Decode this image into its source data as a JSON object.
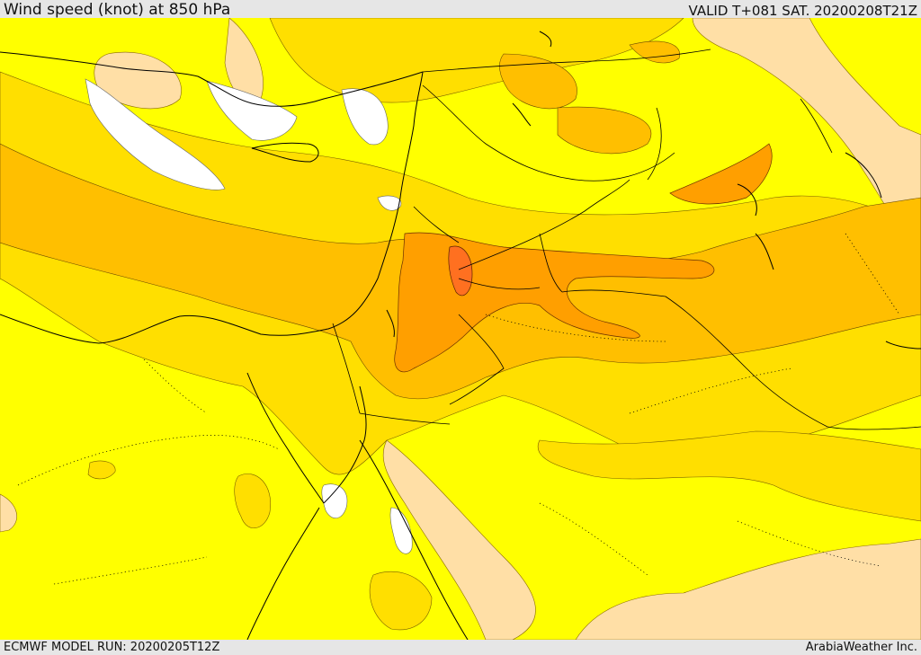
{
  "header": {
    "title": "Wind speed (knot) at 850 hPa",
    "valid": "VALID T+081 SAT. 20200208T21Z"
  },
  "footer": {
    "model_run": "ECMWF MODEL RUN: 20200205T12Z",
    "brand": "ArabiaWeather Inc."
  },
  "palette": {
    "lowest": "#ffffff",
    "low": "#ffdfa6",
    "mid_low": "#ffff00",
    "mid": "#ffdf00",
    "mid_high": "#ffbf00",
    "high": "#ff9f00",
    "highest": "#ff7020"
  }
}
